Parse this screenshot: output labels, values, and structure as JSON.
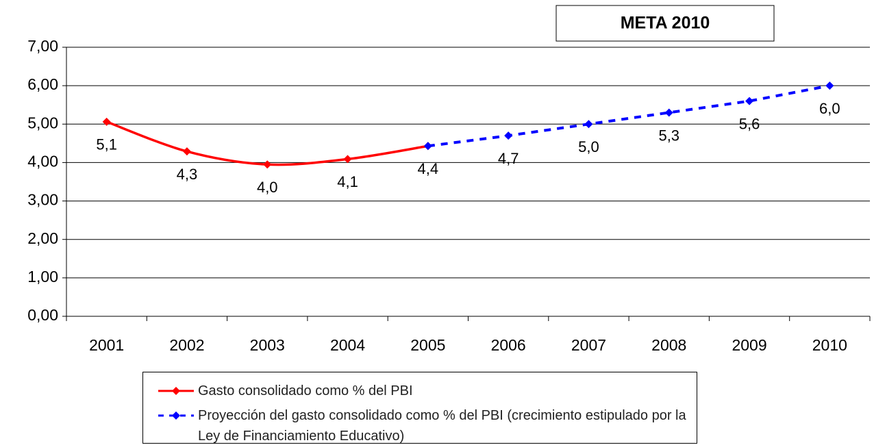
{
  "chart_data": {
    "type": "line",
    "annotation": "META 2010",
    "categories": [
      "2001",
      "2002",
      "2003",
      "2004",
      "2005",
      "2006",
      "2007",
      "2008",
      "2009",
      "2010"
    ],
    "series": [
      {
        "name": "Gasto consolidado como % del PBI",
        "color": "#ff0000",
        "style": "solid",
        "smooth": true,
        "values": [
          5.06,
          4.29,
          3.95,
          4.09,
          4.43,
          null,
          null,
          null,
          null,
          null
        ],
        "value_labels": [
          "5,1",
          "4,3",
          "4,0",
          "4,1",
          "4,4",
          null,
          null,
          null,
          null,
          null
        ]
      },
      {
        "name": "Proyección del gasto consolidado como % del PBI (crecimiento estipulado por la Ley de Financiamiento Educativo)",
        "color": "#0000ff",
        "style": "dashed",
        "smooth": false,
        "values": [
          null,
          null,
          null,
          null,
          4.43,
          4.7,
          5.0,
          5.3,
          5.6,
          6.0
        ],
        "value_labels": [
          null,
          null,
          null,
          null,
          null,
          "4,7",
          "5,0",
          "5,3",
          "5,6",
          "6,0"
        ]
      }
    ],
    "ylim": [
      0,
      7
    ],
    "yticks": [
      {
        "value": 0,
        "label": "0,00"
      },
      {
        "value": 1,
        "label": "1,00"
      },
      {
        "value": 2,
        "label": "2,00"
      },
      {
        "value": 3,
        "label": "3,00"
      },
      {
        "value": 4,
        "label": "4,00"
      },
      {
        "value": 5,
        "label": "5,00"
      },
      {
        "value": 6,
        "label": "6,00"
      },
      {
        "value": 7,
        "label": "7,00"
      }
    ],
    "grid": true,
    "legend": "bottom"
  }
}
